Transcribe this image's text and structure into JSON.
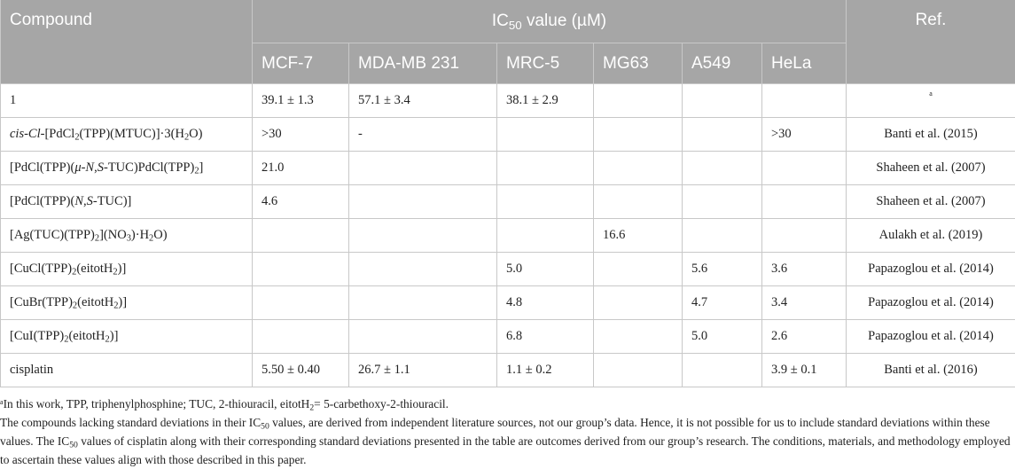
{
  "table": {
    "header": {
      "compound": "Compound",
      "ic50_prefix": "IC",
      "ic50_sub": "50",
      "ic50_suffix": " value (µM)",
      "ref": "Ref.",
      "cell_lines": [
        "MCF-7",
        "MDA-MB 231",
        "MRC-5",
        "MG63",
        "A549",
        "HeLa"
      ]
    },
    "rows": [
      {
        "name": "1",
        "mcf7": "39.1 ± 1.3",
        "mdamb231": "57.1 ± 3.4",
        "mrc5": "38.1 ± 2.9",
        "mg63": "",
        "a549": "",
        "hela": "",
        "ref": "",
        "ref_mark": "a"
      },
      {
        "name": "cis-Cl-[PdCl2(TPP)(MTUC)]·3(H2O)",
        "mcf7": ">30",
        "mdamb231": "-",
        "mrc5": "",
        "mg63": "",
        "a549": "",
        "hela": ">30",
        "ref": "Banti et al. (2015)"
      },
      {
        "name": "[PdCl(TPP)(μ-N,S-TUC)PdCl(TPP)2]",
        "mcf7": "21.0",
        "mdamb231": "",
        "mrc5": "",
        "mg63": "",
        "a549": "",
        "hela": "",
        "ref": "Shaheen et al. (2007)"
      },
      {
        "name": "[PdCl(TPP)(N,S-TUC)]",
        "mcf7": "4.6",
        "mdamb231": "",
        "mrc5": "",
        "mg63": "",
        "a549": "",
        "hela": "",
        "ref": "Shaheen et al. (2007)"
      },
      {
        "name": "[Ag(TUC)(TPP)2](NO3)·H2O)",
        "mcf7": "",
        "mdamb231": "",
        "mrc5": "",
        "mg63": "16.6",
        "a549": "",
        "hela": "",
        "ref": "Aulakh et al. (2019)"
      },
      {
        "name": "[CuCl(TPP)2(eitotH2)]",
        "mcf7": "",
        "mdamb231": "",
        "mrc5": "5.0",
        "mg63": "",
        "a549": "5.6",
        "hela": "3.6",
        "ref": "Papazoglou et al. (2014)"
      },
      {
        "name": "[CuBr(TPP)2(eitotH2)]",
        "mcf7": "",
        "mdamb231": "",
        "mrc5": "4.8",
        "mg63": "",
        "a549": "4.7",
        "hela": "3.4",
        "ref": "Papazoglou et al. (2014)"
      },
      {
        "name": "[CuI(TPP)2(eitotH2)]",
        "mcf7": "",
        "mdamb231": "",
        "mrc5": "6.8",
        "mg63": "",
        "a549": "5.0",
        "hela": "2.6",
        "ref": "Papazoglou et al. (2014)"
      },
      {
        "name": "cisplatin",
        "mcf7": "5.50 ± 0.40",
        "mdamb231": "26.7 ± 1.1",
        "mrc5": "1.1 ± 0.2",
        "mg63": "",
        "a549": "",
        "hela": "3.9 ± 0.1",
        "ref": "Banti et al. (2016)"
      }
    ]
  },
  "footnotes": {
    "mark": "a",
    "line1": "In this work, TPP, triphenylphosphine; TUC, 2-thiouracil, eitotH2= 5-carbethoxy-2-thiouracil.",
    "line2": "The compounds lacking standard deviations in their IC50 values, are derived from independent literature sources, not our group’s data. Hence, it is not possible for us to include standard deviations within these values. The IC50 values of cisplatin along with their corresponding standard deviations presented in the table are outcomes derived from our group’s research. The conditions, materials, and methodology employed to ascertain these values align with those described in this paper."
  }
}
